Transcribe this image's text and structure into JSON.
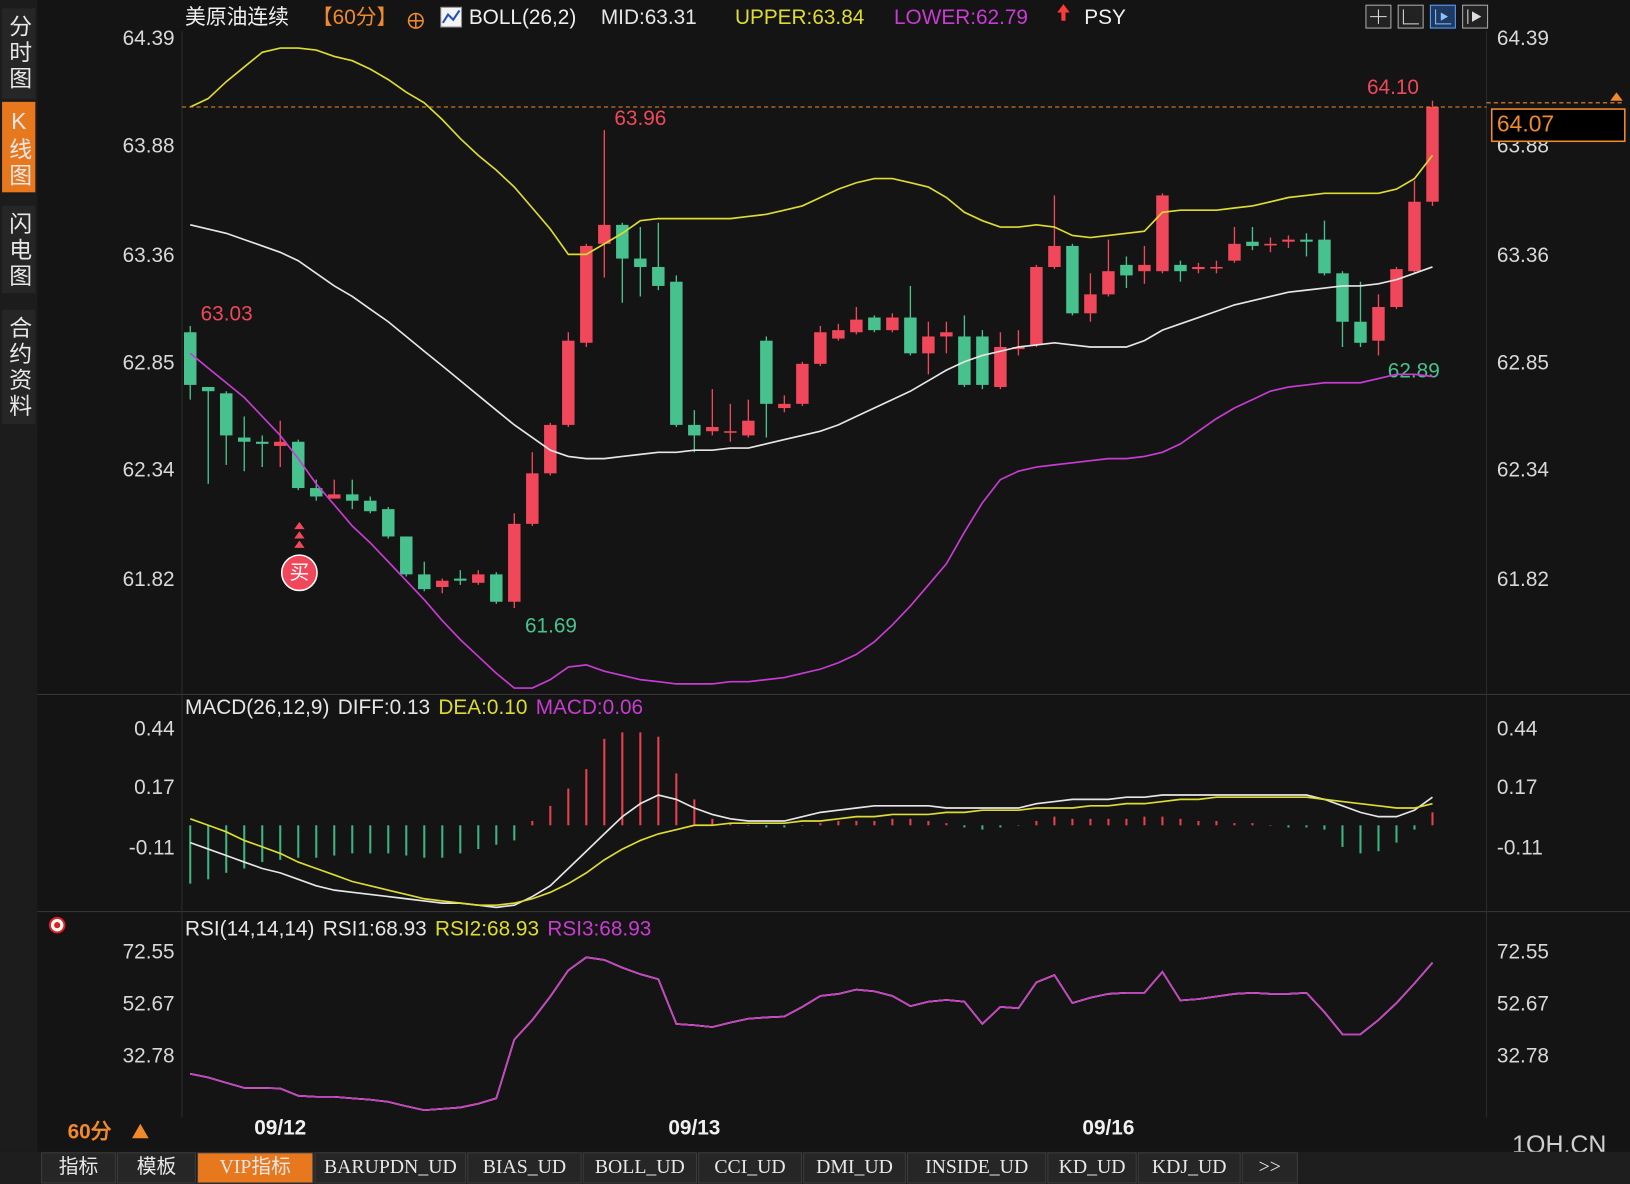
{
  "sidebar": [
    "分时图",
    "K线图",
    "闪电图",
    "合约资料"
  ],
  "timeframe": "60分",
  "tabs": [
    "指标",
    "模板",
    "VIP指标",
    "BARUPDN_UD",
    "BIAS_UD",
    "BOLL_UD",
    "CCI_UD",
    "DMI_UD",
    "INSIDE_UD",
    "KD_UD",
    "KDJ_UD",
    ">>"
  ],
  "watermark": "1QH.CN",
  "chart_data": [
    {
      "type": "candlestick",
      "title": "美原油连续",
      "period": "【60分】",
      "indicator": "BOLL(26,2)",
      "extra": "PSY",
      "signal": "买",
      "up_color": "#f0485a",
      "down_color": "#47c28e",
      "annotations": [
        "63.03",
        "63.96",
        "61.69",
        "64.10",
        "62.89"
      ],
      "last_price": 64.07,
      "categories": [
        null,
        null,
        null,
        null,
        null,
        "09/12",
        null,
        null,
        null,
        null,
        null,
        null,
        null,
        null,
        null,
        null,
        null,
        null,
        null,
        null,
        null,
        null,
        null,
        null,
        null,
        null,
        null,
        null,
        "09/13",
        null,
        null,
        null,
        null,
        null,
        null,
        null,
        null,
        null,
        null,
        null,
        null,
        null,
        null,
        null,
        null,
        null,
        null,
        null,
        null,
        null,
        null,
        "09/16",
        null,
        null,
        null,
        null,
        null,
        null,
        null,
        null,
        null,
        null,
        null,
        null,
        null,
        null,
        null,
        null,
        null,
        null
      ],
      "open": [
        63.0,
        62.74,
        62.71,
        62.5,
        62.48,
        62.46,
        62.48,
        62.26,
        62.21,
        62.23,
        62.2,
        62.16,
        62.03,
        61.85,
        61.79,
        61.83,
        61.81,
        61.85,
        61.72,
        62.09,
        62.33,
        62.56,
        62.95,
        63.42,
        63.51,
        63.35,
        63.31,
        63.24,
        62.56,
        62.53,
        62.53,
        62.51,
        62.96,
        62.64,
        62.66,
        62.85,
        62.97,
        63.0,
        63.07,
        63.01,
        63.07,
        62.9,
        62.98,
        62.98,
        62.98,
        62.74,
        62.92,
        62.94,
        63.31,
        63.41,
        63.09,
        63.18,
        63.32,
        63.29,
        63.29,
        63.32,
        63.3,
        63.31,
        63.34,
        63.43,
        63.42,
        63.43,
        63.44,
        63.44,
        63.28,
        63.05,
        62.96,
        63.12,
        63.29,
        63.62
      ],
      "high": [
        63.03,
        62.74,
        62.72,
        62.6,
        62.51,
        62.58,
        62.49,
        62.3,
        62.3,
        62.3,
        62.22,
        62.17,
        62.03,
        61.91,
        61.83,
        61.87,
        61.87,
        61.86,
        62.14,
        62.43,
        62.57,
        63.0,
        63.42,
        63.96,
        63.52,
        63.5,
        63.52,
        63.27,
        62.63,
        62.73,
        62.66,
        62.68,
        62.98,
        62.7,
        62.86,
        63.03,
        63.04,
        63.12,
        63.08,
        63.09,
        63.22,
        63.05,
        63.05,
        63.08,
        63.01,
        63.0,
        63.01,
        63.32,
        63.65,
        63.42,
        63.28,
        63.44,
        63.36,
        63.41,
        63.66,
        63.34,
        63.33,
        63.34,
        63.5,
        63.5,
        63.45,
        63.46,
        63.47,
        63.53,
        63.29,
        63.24,
        63.18,
        63.31,
        63.72,
        64.1
      ],
      "low": [
        62.68,
        62.28,
        62.37,
        62.34,
        62.36,
        62.36,
        62.25,
        62.2,
        62.21,
        62.16,
        62.14,
        62.02,
        61.84,
        61.77,
        61.76,
        61.8,
        61.8,
        61.71,
        61.69,
        62.08,
        62.32,
        62.55,
        62.93,
        63.26,
        63.14,
        63.17,
        63.2,
        62.55,
        62.43,
        62.51,
        62.48,
        62.5,
        62.5,
        62.62,
        62.65,
        62.84,
        62.96,
        62.99,
        63.0,
        63.0,
        62.89,
        62.8,
        62.9,
        62.74,
        62.73,
        62.73,
        62.89,
        62.93,
        63.3,
        63.08,
        63.05,
        63.17,
        63.21,
        63.23,
        63.28,
        63.24,
        63.28,
        63.28,
        63.33,
        63.39,
        63.38,
        63.4,
        63.36,
        63.27,
        62.93,
        62.93,
        62.89,
        63.11,
        63.28,
        63.6
      ],
      "close": [
        62.75,
        62.72,
        62.51,
        62.48,
        62.47,
        62.48,
        62.26,
        62.22,
        62.23,
        62.2,
        62.15,
        62.03,
        61.85,
        61.78,
        61.82,
        61.82,
        61.85,
        61.72,
        62.09,
        62.33,
        62.56,
        62.96,
        63.41,
        63.51,
        63.35,
        63.31,
        63.22,
        62.56,
        62.51,
        62.55,
        62.53,
        62.58,
        62.66,
        62.66,
        62.85,
        63.0,
        63.01,
        63.06,
        63.01,
        63.07,
        62.9,
        62.98,
        63.0,
        62.75,
        62.75,
        62.93,
        62.93,
        63.31,
        63.41,
        63.09,
        63.18,
        63.29,
        63.27,
        63.32,
        63.65,
        63.29,
        63.31,
        63.31,
        63.42,
        63.41,
        63.42,
        63.44,
        63.43,
        63.28,
        63.05,
        62.95,
        63.12,
        63.3,
        63.62,
        64.07
      ],
      "series": [
        {
          "name": "MID:63.31",
          "color": "#e6e6e6",
          "values": [
            63.51,
            63.49,
            63.47,
            63.44,
            63.41,
            63.38,
            63.34,
            63.28,
            63.22,
            63.17,
            63.11,
            63.05,
            62.98,
            62.91,
            62.84,
            62.77,
            62.7,
            62.63,
            62.56,
            62.5,
            62.44,
            62.41,
            62.4,
            62.4,
            62.41,
            62.42,
            62.43,
            62.43,
            62.44,
            62.44,
            62.45,
            62.45,
            62.47,
            62.49,
            62.51,
            62.53,
            62.56,
            62.6,
            62.64,
            62.68,
            62.72,
            62.77,
            62.82,
            62.86,
            62.89,
            62.91,
            62.93,
            62.94,
            62.95,
            62.94,
            62.93,
            62.93,
            62.93,
            62.96,
            63.01,
            63.04,
            63.07,
            63.1,
            63.13,
            63.15,
            63.17,
            63.19,
            63.2,
            63.21,
            63.22,
            63.22,
            63.23,
            63.25,
            63.28,
            63.31
          ]
        },
        {
          "name": "UPPER:63.84",
          "color": "#dcdc32",
          "values": [
            64.07,
            64.11,
            64.19,
            64.26,
            64.33,
            64.35,
            64.35,
            64.34,
            64.31,
            64.29,
            64.25,
            64.2,
            64.14,
            64.09,
            64.01,
            63.92,
            63.84,
            63.77,
            63.69,
            63.59,
            63.49,
            63.37,
            63.37,
            63.42,
            63.47,
            63.53,
            63.54,
            63.54,
            63.54,
            63.54,
            63.54,
            63.55,
            63.56,
            63.58,
            63.6,
            63.64,
            63.68,
            63.71,
            63.73,
            63.73,
            63.71,
            63.69,
            63.64,
            63.57,
            63.53,
            63.5,
            63.5,
            63.51,
            63.5,
            63.46,
            63.45,
            63.46,
            63.47,
            63.48,
            63.57,
            63.58,
            63.58,
            63.58,
            63.59,
            63.6,
            63.62,
            63.64,
            63.65,
            63.66,
            63.66,
            63.66,
            63.66,
            63.68,
            63.73,
            63.84
          ]
        },
        {
          "name": "LOWER:62.79",
          "color": "#c83cd2",
          "values": [
            62.9,
            62.83,
            62.76,
            62.69,
            62.6,
            62.51,
            62.4,
            62.28,
            62.18,
            62.08,
            62.0,
            61.91,
            61.82,
            61.73,
            61.63,
            61.54,
            61.46,
            61.38,
            61.31,
            61.31,
            61.35,
            61.41,
            61.42,
            61.39,
            61.37,
            61.35,
            61.34,
            61.33,
            61.33,
            61.33,
            61.34,
            61.34,
            61.35,
            61.36,
            61.38,
            61.4,
            61.43,
            61.47,
            61.53,
            61.61,
            61.7,
            61.8,
            61.9,
            62.05,
            62.19,
            62.3,
            62.34,
            62.36,
            62.37,
            62.38,
            62.39,
            62.4,
            62.4,
            62.41,
            62.43,
            62.47,
            62.53,
            62.59,
            62.64,
            62.68,
            62.72,
            62.74,
            62.75,
            62.76,
            62.76,
            62.76,
            62.78,
            62.8,
            62.8,
            62.79
          ]
        }
      ],
      "ylim": [
        61.28,
        64.43
      ],
      "yticks": [
        61.82,
        62.34,
        62.85,
        63.36,
        63.88,
        64.39
      ]
    },
    {
      "type": "line",
      "title": "MACD(26,12,9)",
      "series": [
        {
          "name": "DIFF:0.13",
          "color": "#e6e6e6",
          "values": [
            -0.08,
            -0.11,
            -0.14,
            -0.17,
            -0.2,
            -0.22,
            -0.25,
            -0.28,
            -0.3,
            -0.31,
            -0.32,
            -0.33,
            -0.34,
            -0.35,
            -0.36,
            -0.36,
            -0.37,
            -0.38,
            -0.37,
            -0.33,
            -0.28,
            -0.2,
            -0.12,
            -0.04,
            0.04,
            0.1,
            0.14,
            0.12,
            0.08,
            0.05,
            0.03,
            0.02,
            0.02,
            0.02,
            0.04,
            0.06,
            0.07,
            0.08,
            0.09,
            0.09,
            0.09,
            0.09,
            0.08,
            0.08,
            0.08,
            0.08,
            0.08,
            0.1,
            0.11,
            0.12,
            0.12,
            0.12,
            0.13,
            0.13,
            0.14,
            0.14,
            0.14,
            0.14,
            0.14,
            0.14,
            0.14,
            0.14,
            0.14,
            0.12,
            0.09,
            0.06,
            0.04,
            0.04,
            0.07,
            0.13
          ]
        },
        {
          "name": "DEA:0.10",
          "color": "#dcdc32",
          "values": [
            0.03,
            0.0,
            -0.03,
            -0.07,
            -0.1,
            -0.13,
            -0.17,
            -0.2,
            -0.23,
            -0.26,
            -0.28,
            -0.3,
            -0.32,
            -0.34,
            -0.35,
            -0.36,
            -0.37,
            -0.37,
            -0.36,
            -0.34,
            -0.31,
            -0.27,
            -0.22,
            -0.16,
            -0.11,
            -0.07,
            -0.04,
            -0.02,
            0.0,
            0.0,
            0.01,
            0.01,
            0.01,
            0.01,
            0.02,
            0.02,
            0.03,
            0.04,
            0.04,
            0.05,
            0.05,
            0.05,
            0.06,
            0.06,
            0.07,
            0.07,
            0.07,
            0.08,
            0.08,
            0.08,
            0.09,
            0.09,
            0.1,
            0.1,
            0.11,
            0.12,
            0.12,
            0.13,
            0.13,
            0.13,
            0.13,
            0.13,
            0.13,
            0.12,
            0.11,
            0.1,
            0.09,
            0.08,
            0.08,
            0.1
          ]
        },
        {
          "name": "MACD:0.06",
          "color": "#c83cd2",
          "type": "bar",
          "up_color": "#e8404e",
          "down_color": "#3fb37f",
          "values": [
            -0.27,
            -0.25,
            -0.22,
            -0.2,
            -0.17,
            -0.16,
            -0.15,
            -0.15,
            -0.14,
            -0.13,
            -0.13,
            -0.13,
            -0.14,
            -0.15,
            -0.15,
            -0.13,
            -0.11,
            -0.09,
            -0.07,
            0.02,
            0.09,
            0.17,
            0.26,
            0.4,
            0.43,
            0.43,
            0.41,
            0.24,
            0.12,
            0.03,
            0.01,
            0.0,
            -0.01,
            -0.01,
            0.0,
            0.01,
            0.02,
            0.02,
            0.02,
            0.03,
            0.03,
            0.02,
            0.01,
            -0.01,
            -0.02,
            -0.01,
            0.0,
            0.02,
            0.04,
            0.03,
            0.03,
            0.03,
            0.03,
            0.04,
            0.04,
            0.03,
            0.02,
            0.02,
            0.01,
            0.01,
            0.0,
            -0.01,
            -0.01,
            -0.02,
            -0.1,
            -0.13,
            -0.12,
            -0.08,
            -0.02,
            0.06
          ]
        }
      ],
      "ylim": [
        -0.39,
        0.5
      ],
      "yticks": [
        -0.11,
        0.17,
        0.44
      ]
    },
    {
      "type": "line",
      "title": "RSI(14,14,14)",
      "series": [
        {
          "name": "RSI1:68.93",
          "color": "#e6e6e6",
          "values": [
            26.4,
            25.0,
            23.0,
            21.0,
            21.0,
            20.8,
            18.0,
            17.6,
            17.6,
            17.0,
            16.5,
            15.7,
            14.0,
            12.5,
            13.0,
            13.5,
            15.0,
            17.0,
            39.5,
            47.0,
            56.0,
            66.0,
            71.0,
            70.0,
            67.0,
            64.5,
            62.6,
            45.5,
            45.0,
            44.3,
            46.0,
            47.5,
            48.0,
            48.3,
            52.0,
            56.2,
            57.0,
            58.6,
            58.0,
            56.2,
            52.3,
            54.0,
            54.7,
            54.0,
            45.5,
            52.0,
            51.5,
            61.4,
            64.2,
            53.5,
            55.5,
            57.0,
            57.4,
            57.4,
            65.4,
            54.5,
            55.0,
            56.0,
            57.0,
            57.4,
            57.0,
            57.0,
            57.4,
            50.0,
            41.5,
            41.5,
            47.0,
            53.5,
            61.0,
            68.93
          ]
        },
        {
          "name": "RSI2:68.93",
          "color": "#dcdc32",
          "values": [
            26.4,
            25.0,
            23.0,
            21.0,
            21.0,
            20.8,
            18.0,
            17.6,
            17.6,
            17.0,
            16.5,
            15.7,
            14.0,
            12.5,
            13.0,
            13.5,
            15.0,
            17.0,
            39.5,
            47.0,
            56.0,
            66.0,
            71.0,
            70.0,
            67.0,
            64.5,
            62.6,
            45.5,
            45.0,
            44.3,
            46.0,
            47.5,
            48.0,
            48.3,
            52.0,
            56.2,
            57.0,
            58.6,
            58.0,
            56.2,
            52.3,
            54.0,
            54.7,
            54.0,
            45.5,
            52.0,
            51.5,
            61.4,
            64.2,
            53.5,
            55.5,
            57.0,
            57.4,
            57.4,
            65.4,
            54.5,
            55.0,
            56.0,
            57.0,
            57.4,
            57.0,
            57.0,
            57.4,
            50.0,
            41.5,
            41.5,
            47.0,
            53.5,
            61.0,
            68.93
          ]
        },
        {
          "name": "RSI3:68.93",
          "color": "#c83cd2",
          "values": [
            26.4,
            25.0,
            23.0,
            21.0,
            21.0,
            20.8,
            18.0,
            17.6,
            17.6,
            17.0,
            16.5,
            15.7,
            14.0,
            12.5,
            13.0,
            13.5,
            15.0,
            17.0,
            39.5,
            47.0,
            56.0,
            66.0,
            71.0,
            70.0,
            67.0,
            64.5,
            62.6,
            45.5,
            45.0,
            44.3,
            46.0,
            47.5,
            48.0,
            48.3,
            52.0,
            56.2,
            57.0,
            58.6,
            58.0,
            56.2,
            52.3,
            54.0,
            54.7,
            54.0,
            45.5,
            52.0,
            51.5,
            61.4,
            64.2,
            53.5,
            55.5,
            57.0,
            57.4,
            57.4,
            65.4,
            54.5,
            55.0,
            56.0,
            57.0,
            57.4,
            57.0,
            57.0,
            57.4,
            50.0,
            41.5,
            41.5,
            47.0,
            53.5,
            61.0,
            68.93
          ]
        }
      ],
      "ylim": [
        9.7,
        79.3
      ],
      "yticks": [
        32.78,
        52.67,
        72.55
      ]
    }
  ]
}
